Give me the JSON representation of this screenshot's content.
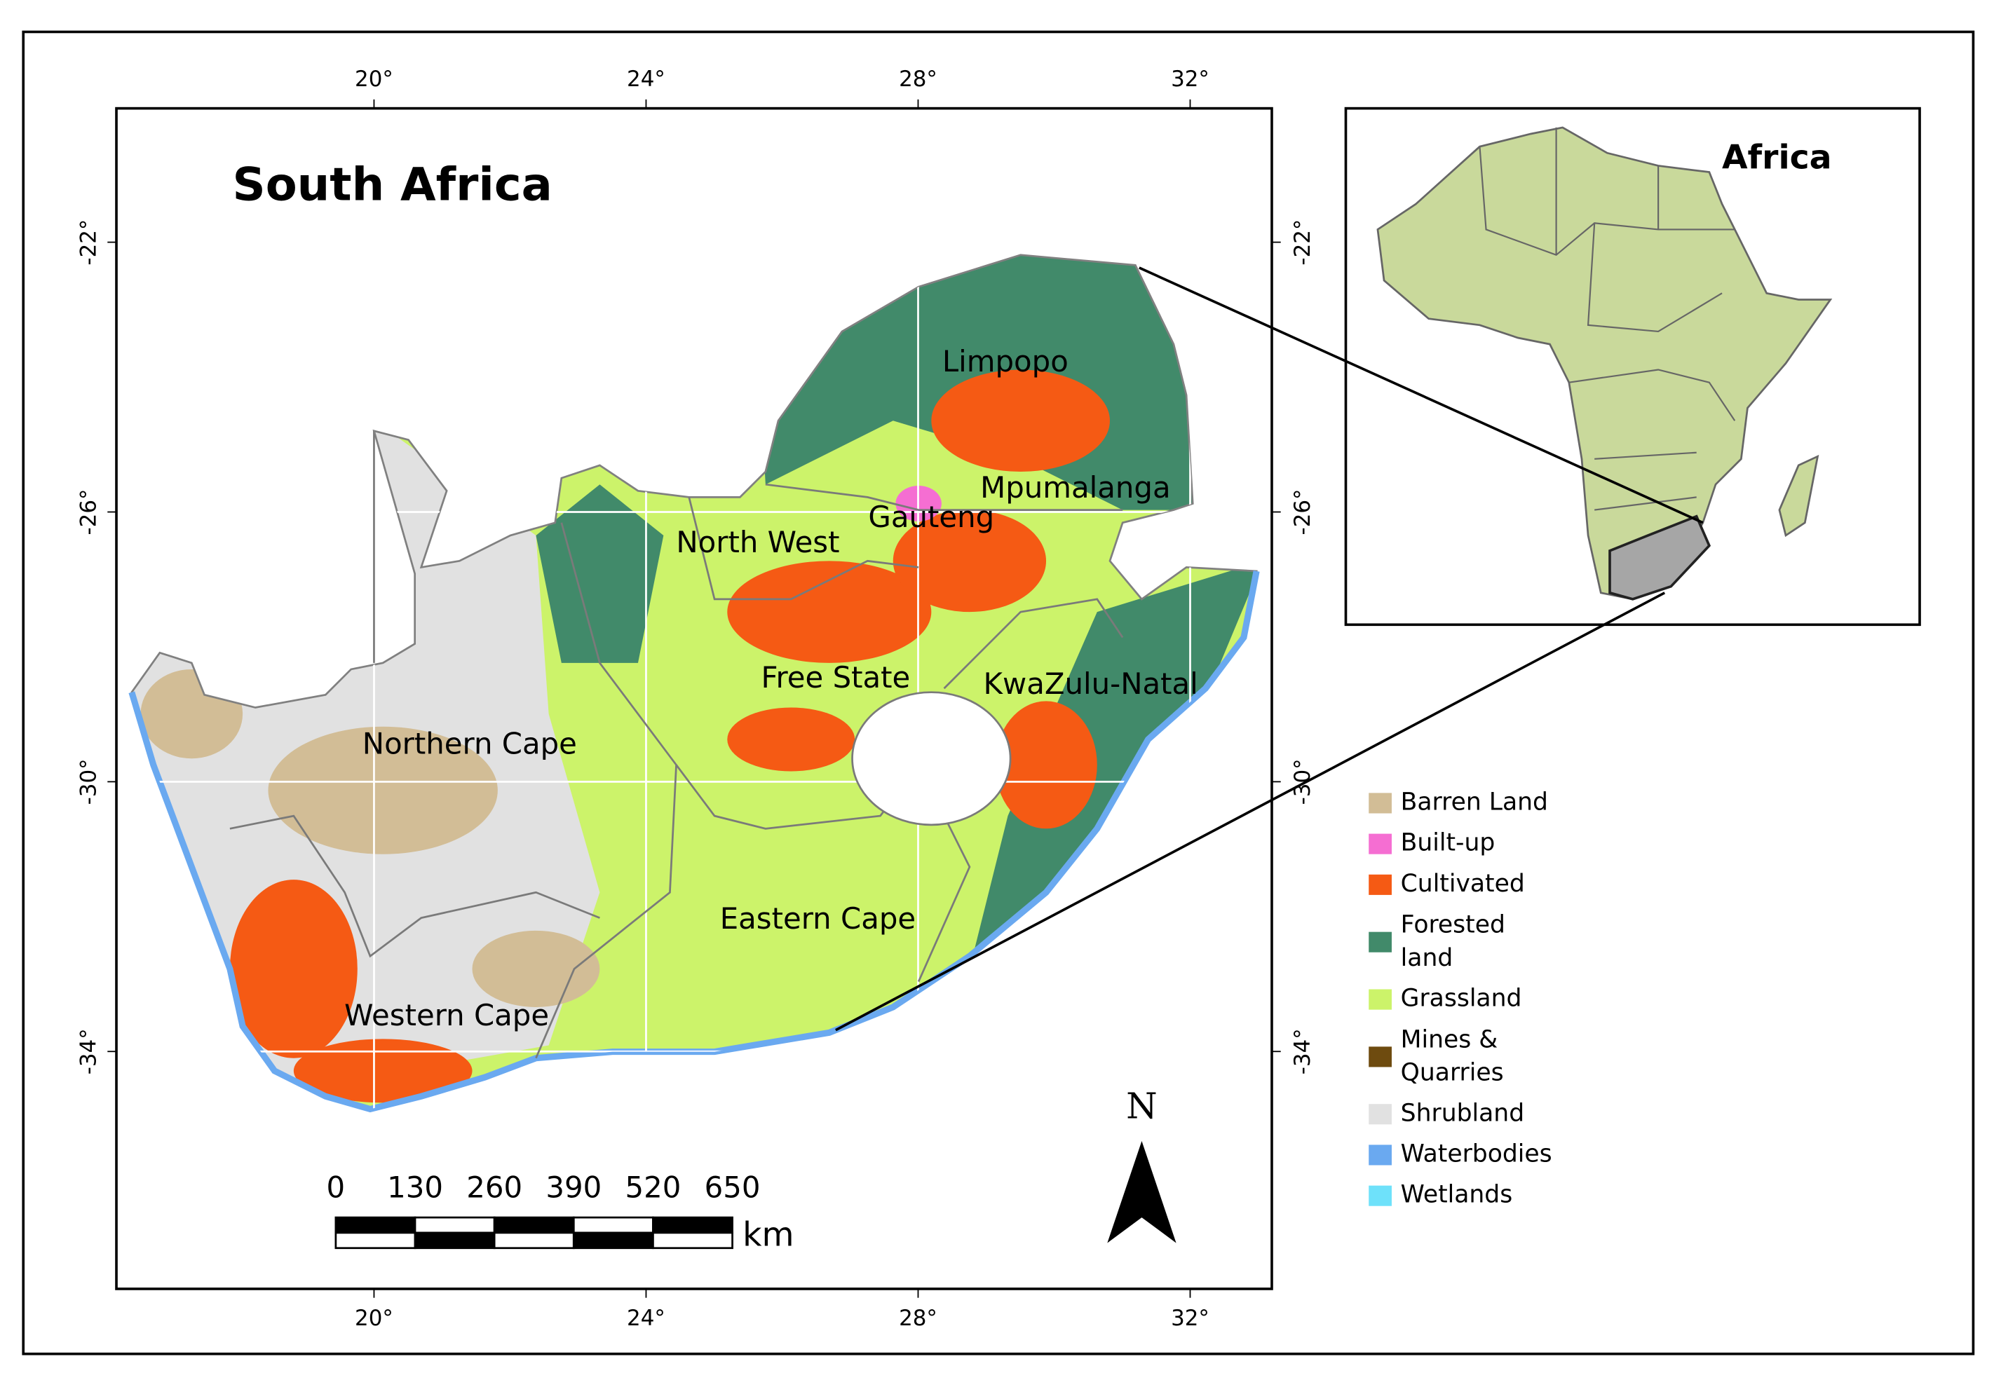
{
  "map": {
    "title": "South Africa",
    "inset_title": "Africa",
    "provinces": [
      "Limpopo",
      "Mpumalanga",
      "Gauteng",
      "North West",
      "Free State",
      "KwaZulu-Natal",
      "Northern Cape",
      "Eastern Cape",
      "Western Cape"
    ],
    "lon_ticks": [
      {
        "value": 20,
        "label": "20°"
      },
      {
        "value": 24,
        "label": "24°"
      },
      {
        "value": 28,
        "label": "28°"
      },
      {
        "value": 32,
        "label": "32°"
      }
    ],
    "lat_ticks": [
      {
        "value": -22,
        "label": "-22°"
      },
      {
        "value": -26,
        "label": "-26°"
      },
      {
        "value": -30,
        "label": "-30°"
      },
      {
        "value": -34,
        "label": "-34°"
      }
    ],
    "legend": [
      {
        "label": "Barren Land",
        "color": "#d2bd96"
      },
      {
        "label": "Built-up",
        "color": "#f56ed2"
      },
      {
        "label": "Cultivated",
        "color": "#f55a14"
      },
      {
        "label": "Forested land",
        "color": "#418a6a"
      },
      {
        "label": "Grassland",
        "color": "#ccf36a"
      },
      {
        "label": "Mines & Quarries",
        "color": "#6e4b0f"
      },
      {
        "label": "Shrubland",
        "color": "#e1e1e1"
      },
      {
        "label": "Waterbodies",
        "color": "#6aa9f0"
      },
      {
        "label": "Wetlands",
        "color": "#6ee1fa"
      }
    ],
    "scale_bar": {
      "ticks": [
        0,
        130,
        260,
        390,
        520,
        650
      ],
      "unit": "km"
    },
    "north_label": "N"
  }
}
